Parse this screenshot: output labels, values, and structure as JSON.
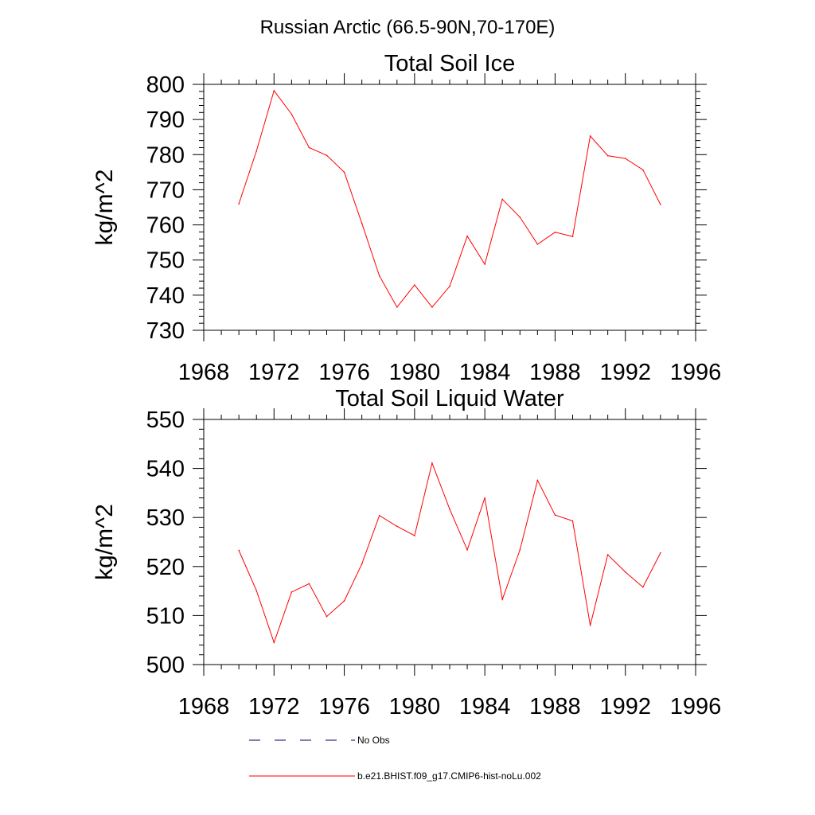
{
  "figure_title": "Russian Arctic (66.5-90N,70-170E)",
  "chart_data": [
    {
      "type": "line",
      "title": "Total Soil Ice",
      "xlabel": "",
      "ylabel": "kg/m^2",
      "xlim": [
        1968,
        1996
      ],
      "ylim": [
        730,
        800
      ],
      "xticks": [
        1968,
        1972,
        1976,
        1980,
        1984,
        1988,
        1992,
        1996
      ],
      "yticks": [
        730,
        740,
        750,
        760,
        770,
        780,
        790,
        800
      ],
      "series": [
        {
          "name": "b.e21.BHIST.f09_g17.CMIP6-hist-noLu.002",
          "color": "#ff0000",
          "x": [
            1970,
            1971,
            1972,
            1973,
            1974,
            1975,
            1976,
            1977,
            1978,
            1979,
            1980,
            1981,
            1982,
            1983,
            1984,
            1985,
            1986,
            1987,
            1988,
            1989,
            1990,
            1991,
            1992,
            1993,
            1994
          ],
          "y": [
            766,
            781,
            798.2,
            791.5,
            782,
            779.8,
            775,
            760.5,
            745.5,
            736.6,
            742.9,
            736.6,
            742.5,
            756.8,
            748.8,
            767.3,
            762.2,
            754.5,
            757.9,
            756.7,
            785.3,
            779.7,
            778.9,
            775.7,
            765.8
          ]
        }
      ]
    },
    {
      "type": "line",
      "title": "Total Soil Liquid Water",
      "xlabel": "",
      "ylabel": "kg/m^2",
      "xlim": [
        1968,
        1996
      ],
      "ylim": [
        500,
        550
      ],
      "xticks": [
        1968,
        1972,
        1976,
        1980,
        1984,
        1988,
        1992,
        1996
      ],
      "yticks": [
        500,
        510,
        520,
        530,
        540,
        550
      ],
      "series": [
        {
          "name": "b.e21.BHIST.f09_g17.CMIP6-hist-noLu.002",
          "color": "#ff0000",
          "x": [
            1970,
            1971,
            1972,
            1973,
            1974,
            1975,
            1976,
            1977,
            1978,
            1979,
            1980,
            1981,
            1982,
            1983,
            1984,
            1985,
            1986,
            1987,
            1988,
            1989,
            1990,
            1991,
            1992,
            1993,
            1994
          ],
          "y": [
            523.3,
            515.1,
            504.5,
            514.8,
            516.5,
            509.8,
            513,
            520.5,
            530.4,
            528.2,
            526.3,
            541.1,
            531.7,
            523.4,
            534,
            513.3,
            523.4,
            537.6,
            530.5,
            529.3,
            508,
            522.4,
            518.9,
            515.8,
            522.8
          ]
        }
      ]
    }
  ],
  "legend": {
    "placement": "bottom-center",
    "entries": [
      {
        "label": "No Obs",
        "style": "dashed",
        "color": "#000066"
      },
      {
        "label": "b.e21.BHIST.f09_g17.CMIP6-hist-noLu.002",
        "style": "solid",
        "color": "#ff0000"
      }
    ]
  }
}
